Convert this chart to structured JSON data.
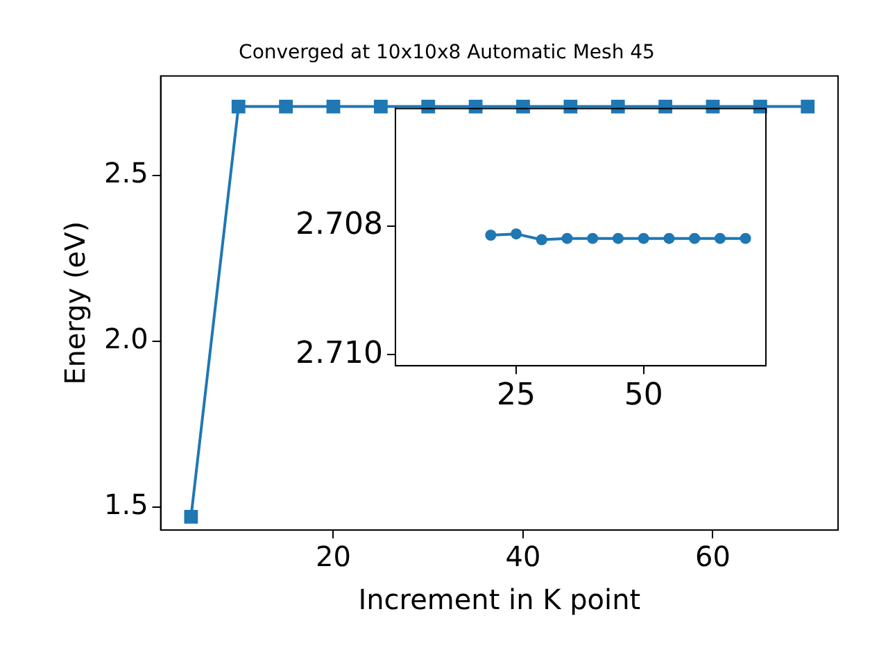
{
  "chart_data": [
    {
      "type": "line",
      "title": "Converged at 10x10x8 Automatic Mesh 45",
      "xlabel": "Increment in K point",
      "ylabel": "Energy (eV)",
      "x": [
        5,
        10,
        15,
        20,
        25,
        30,
        35,
        40,
        45,
        50,
        55,
        60,
        65,
        70
      ],
      "series": [
        {
          "color": "#1f77b4",
          "values": [
            1.47,
            2.708,
            2.708,
            2.708,
            2.708,
            2.708,
            2.708,
            2.708,
            2.708,
            2.708,
            2.708,
            2.708,
            2.708,
            2.708
          ]
        }
      ],
      "xlim": [
        1.8,
        73.2
      ],
      "xticks": [
        20,
        40,
        60
      ],
      "ylim": [
        1.43,
        2.8
      ],
      "yticks": [
        1.5,
        {
          "value": 2.0,
          "label": "2.0"
        },
        2.5
      ],
      "grid": false,
      "legend": false,
      "marker": "square",
      "line_style": "solid"
    },
    {
      "type": "line",
      "x": [
        20,
        25,
        30,
        35,
        40,
        45,
        50,
        55,
        60,
        65,
        70
      ],
      "series": [
        {
          "color": "#1f77b4",
          "values": [
            2.70814,
            2.70812,
            2.70821,
            2.70819,
            2.70819,
            2.70819,
            2.70819,
            2.70819,
            2.70819,
            2.70819,
            2.70819
          ]
        }
      ],
      "xlim": [
        1.3,
        74
      ],
      "xticks": [
        25,
        50
      ],
      "ylim": [
        2.71017,
        2.70617
      ],
      "yticks": [
        {
          "value": 2.708,
          "label": "2.708"
        },
        {
          "value": 2.71,
          "label": "2.710"
        }
      ],
      "grid": false,
      "legend": false,
      "marker": "circle",
      "line_style": "solid"
    }
  ]
}
